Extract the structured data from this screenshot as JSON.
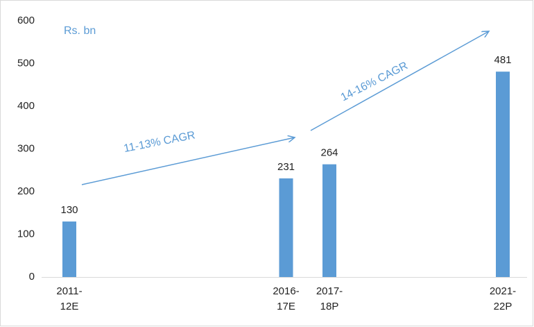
{
  "chart_data": {
    "type": "bar",
    "categories": [
      "2011-12E",
      "2016-17E",
      "2017-18P",
      "2021-22P"
    ],
    "values": [
      130,
      231,
      264,
      481
    ],
    "color": "#5b9bd5",
    "ylim": [
      0,
      600
    ],
    "yticks": [
      0,
      100,
      200,
      300,
      400,
      500,
      600
    ],
    "grid": false,
    "annotations": [
      "Rs. bn",
      "11-13% CAGR",
      "14-16% CAGR"
    ]
  }
}
